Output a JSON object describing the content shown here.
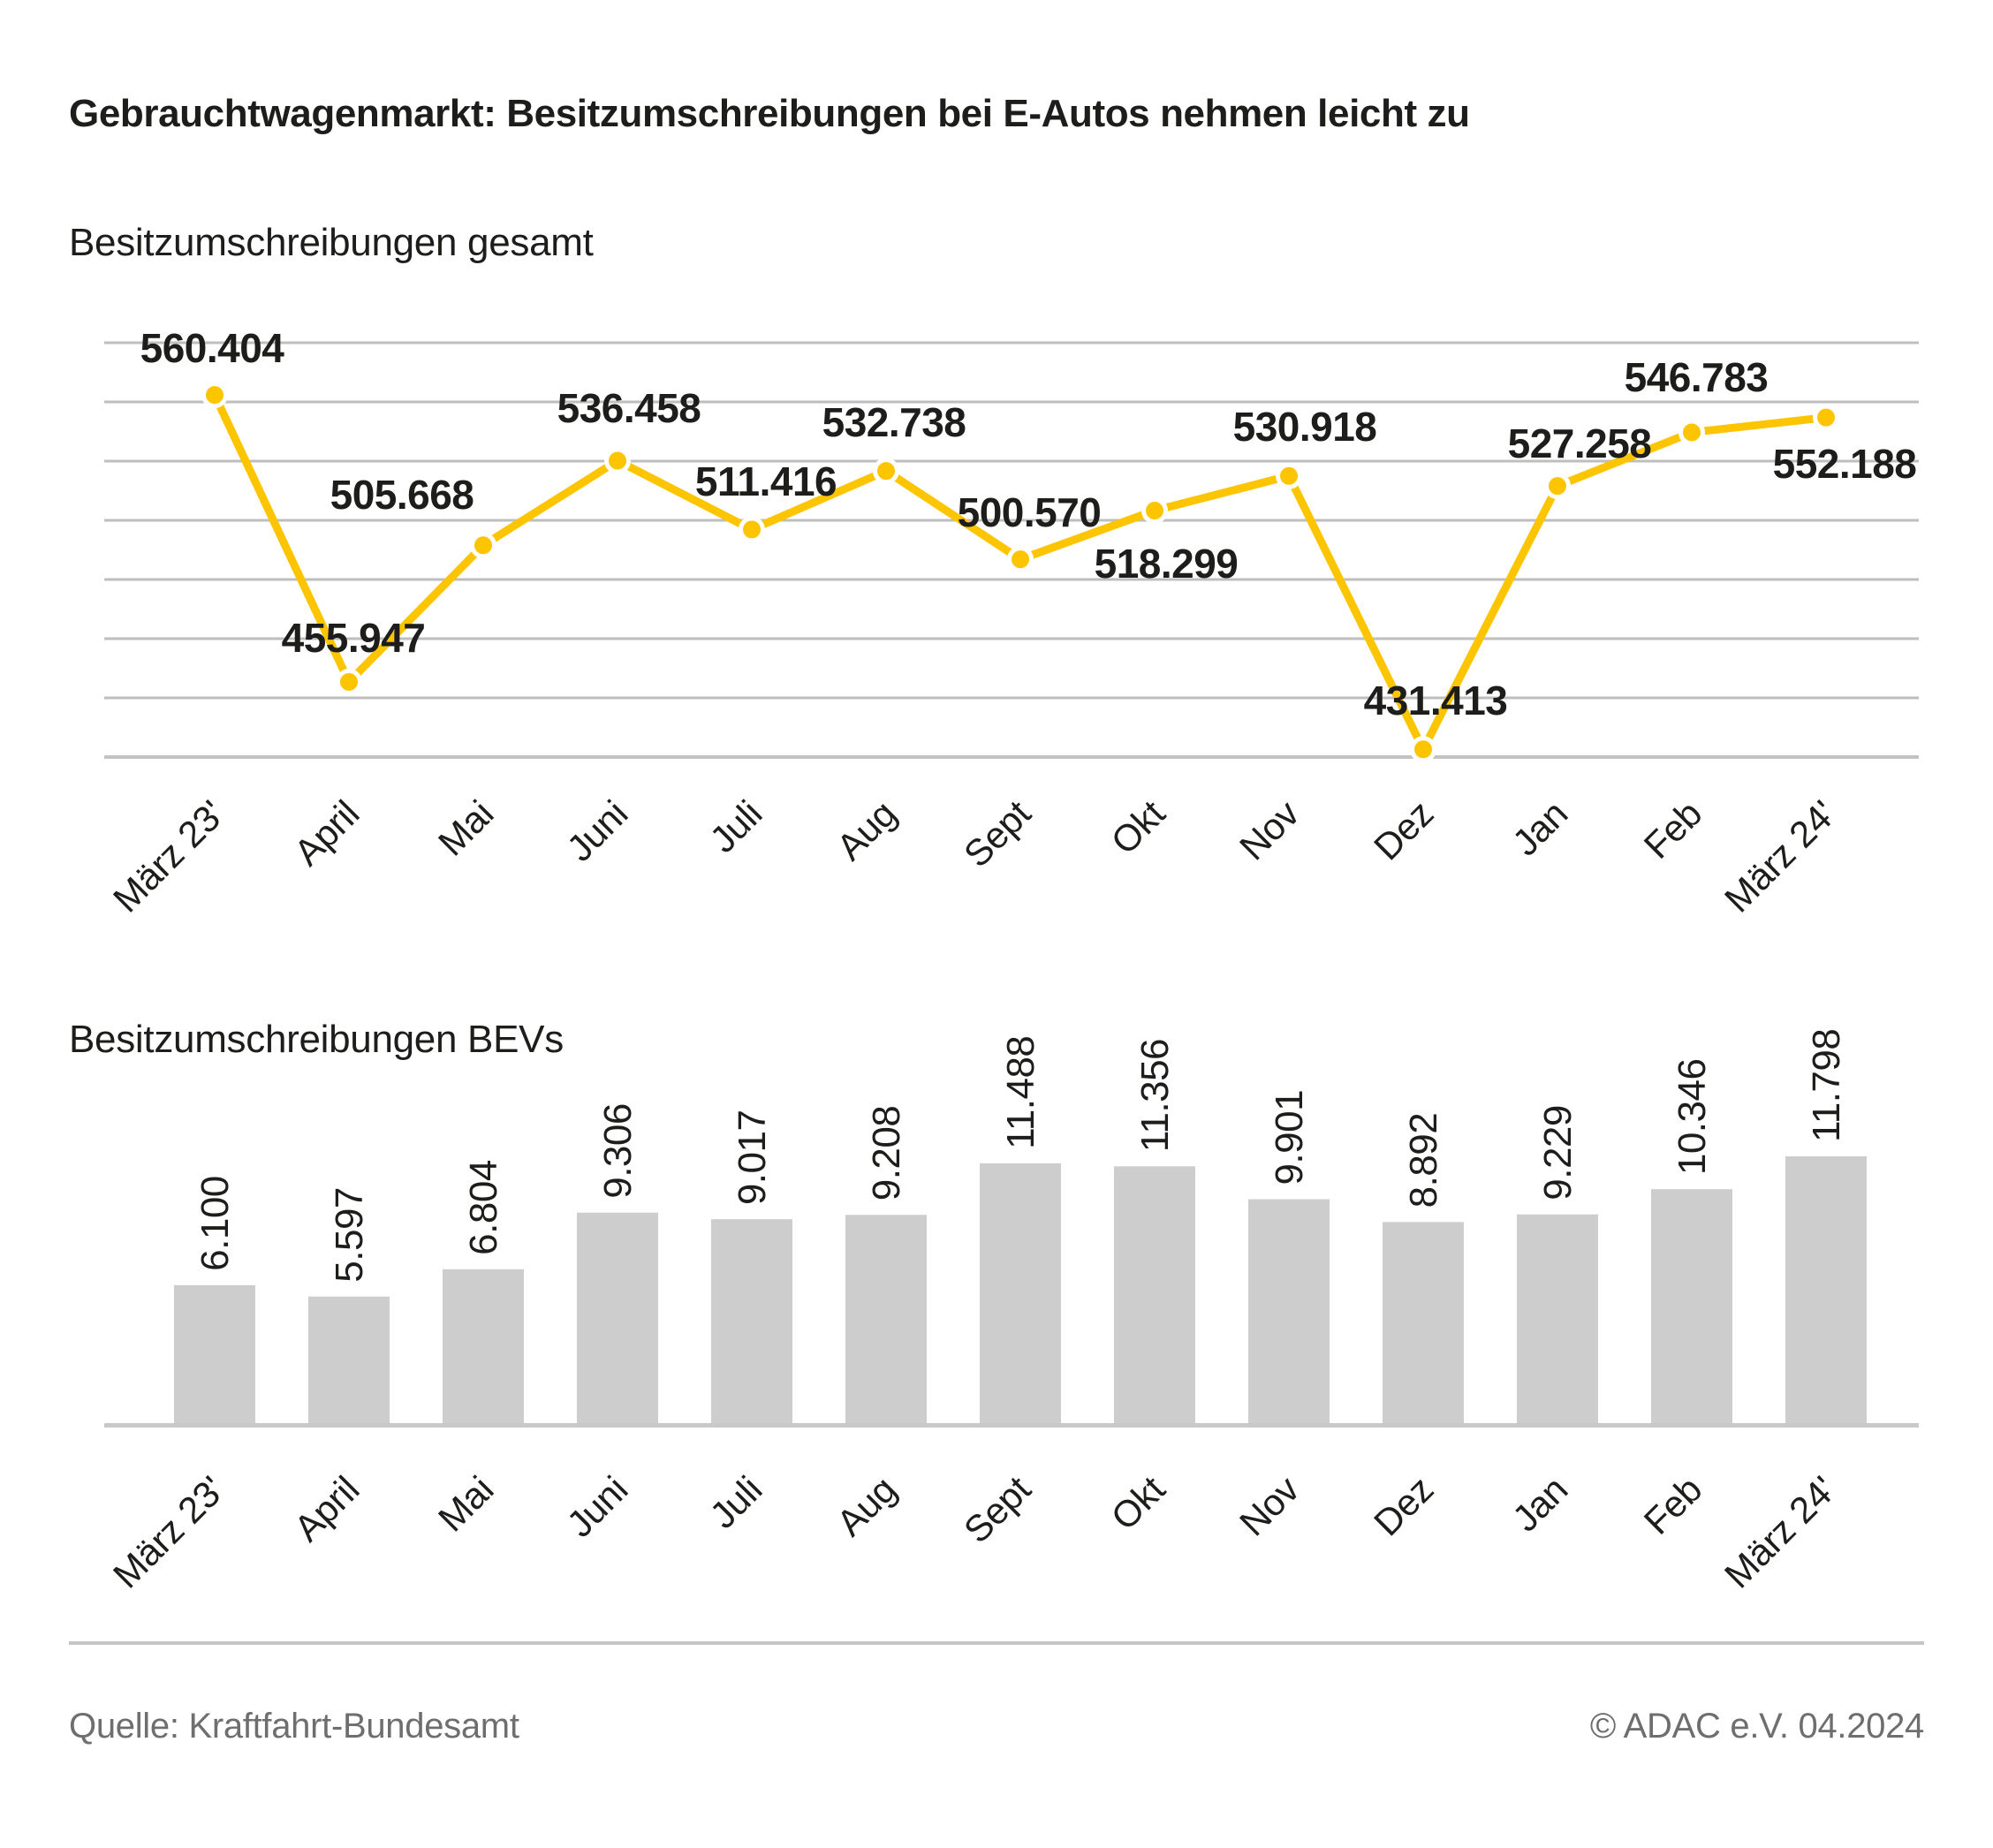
{
  "title": "Gebrauchtwagenmarkt: Besitzumschreibungen bei E-Autos nehmen leicht zu",
  "footer": {
    "source": "Quelle: Kraftfahrt-Bundesamt",
    "copyright": "© ADAC e.V. 04.2024"
  },
  "colors": {
    "accent_yellow": "#FDC500",
    "bar_gray": "#CDCDCD",
    "grid_gray": "#BEBEBE",
    "axis_gray": "#C9C9C9",
    "text_dark": "#1D1D1B",
    "text_gray": "#6F6E6E"
  },
  "chart_data": [
    {
      "type": "line",
      "title": "Besitzumschreibungen gesamt",
      "categories": [
        "März 23'",
        "April",
        "Mai",
        "Juni",
        "Juli",
        "Aug",
        "Sept",
        "Okt",
        "Nov",
        "Dez",
        "Jan",
        "Feb",
        "März 24'"
      ],
      "values": [
        560404,
        455947,
        505668,
        536458,
        511416,
        532738,
        500570,
        518299,
        530918,
        431413,
        527258,
        546783,
        552188
      ],
      "labels": [
        "560.404",
        "455.947",
        "505.668",
        "536.458",
        "511.416",
        "532.738",
        "500.570",
        "518.299",
        "530.918",
        "431.413",
        "527.258",
        "546.783",
        "552.188"
      ],
      "xlabel": "",
      "ylabel": "",
      "ylim": [
        428600,
        579400
      ],
      "gridline_count": 8,
      "grid": true,
      "legend_position": "none",
      "line_color": "#FDC500"
    },
    {
      "type": "bar",
      "title": "Besitzumschreibungen BEVs",
      "categories": [
        "März 23'",
        "April",
        "Mai",
        "Juni",
        "Juli",
        "Aug",
        "Sept",
        "Okt",
        "Nov",
        "Dez",
        "Jan",
        "Feb",
        "März 24'"
      ],
      "values": [
        6100,
        5597,
        6804,
        9306,
        9017,
        9208,
        11488,
        11356,
        9901,
        8892,
        9229,
        10346,
        11798
      ],
      "labels": [
        "6.100",
        "5.597",
        "6.804",
        "9.306",
        "9.017",
        "9.208",
        "11.488",
        "11.356",
        "9.901",
        "8.892",
        "9.229",
        "10.346",
        "11.798"
      ],
      "xlabel": "",
      "ylabel": "",
      "ylim": [
        0,
        12000
      ],
      "grid": false,
      "legend_position": "none",
      "bar_color": "#CDCDCD"
    }
  ]
}
